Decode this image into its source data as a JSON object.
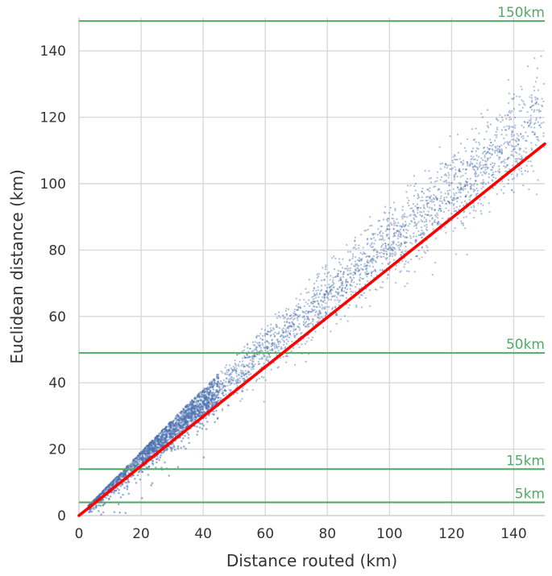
{
  "chart_data": {
    "type": "scatter",
    "xlabel": "Distance routed (km)",
    "ylabel": "Euclidean distance (km)",
    "xlim": [
      0,
      150
    ],
    "ylim": [
      0,
      150
    ],
    "x_ticks": [
      0,
      20,
      40,
      60,
      80,
      100,
      120,
      140
    ],
    "y_ticks": [
      0,
      20,
      40,
      60,
      80,
      100,
      120,
      140
    ],
    "grid": true,
    "point_color": "#4C72B0",
    "scatter_description_points": [
      [
        5,
        3
      ],
      [
        10,
        7
      ],
      [
        15,
        11
      ],
      [
        20,
        14
      ],
      [
        25,
        18
      ],
      [
        30,
        22
      ],
      [
        35,
        25
      ],
      [
        40,
        29
      ],
      [
        45,
        33
      ],
      [
        50,
        37
      ],
      [
        55,
        40
      ],
      [
        60,
        44
      ],
      [
        65,
        48
      ],
      [
        70,
        52
      ],
      [
        75,
        55
      ],
      [
        80,
        59
      ],
      [
        85,
        63
      ],
      [
        90,
        67
      ],
      [
        95,
        70
      ],
      [
        100,
        74
      ],
      [
        105,
        78
      ],
      [
        110,
        82
      ],
      [
        115,
        85
      ],
      [
        120,
        89
      ],
      [
        125,
        93
      ],
      [
        130,
        97
      ],
      [
        135,
        100
      ],
      [
        140,
        104
      ],
      [
        145,
        108
      ],
      [
        150,
        112
      ]
    ],
    "fit_line": {
      "color": "#ff0000",
      "points": [
        [
          0,
          0
        ],
        [
          150,
          112
        ]
      ]
    },
    "reference_lines": [
      {
        "y": 149,
        "label": "150km"
      },
      {
        "y": 49,
        "label": "50km"
      },
      {
        "y": 14,
        "label": "15km"
      },
      {
        "y": 4,
        "label": "5km"
      }
    ],
    "reference_line_color": "#55a868"
  }
}
